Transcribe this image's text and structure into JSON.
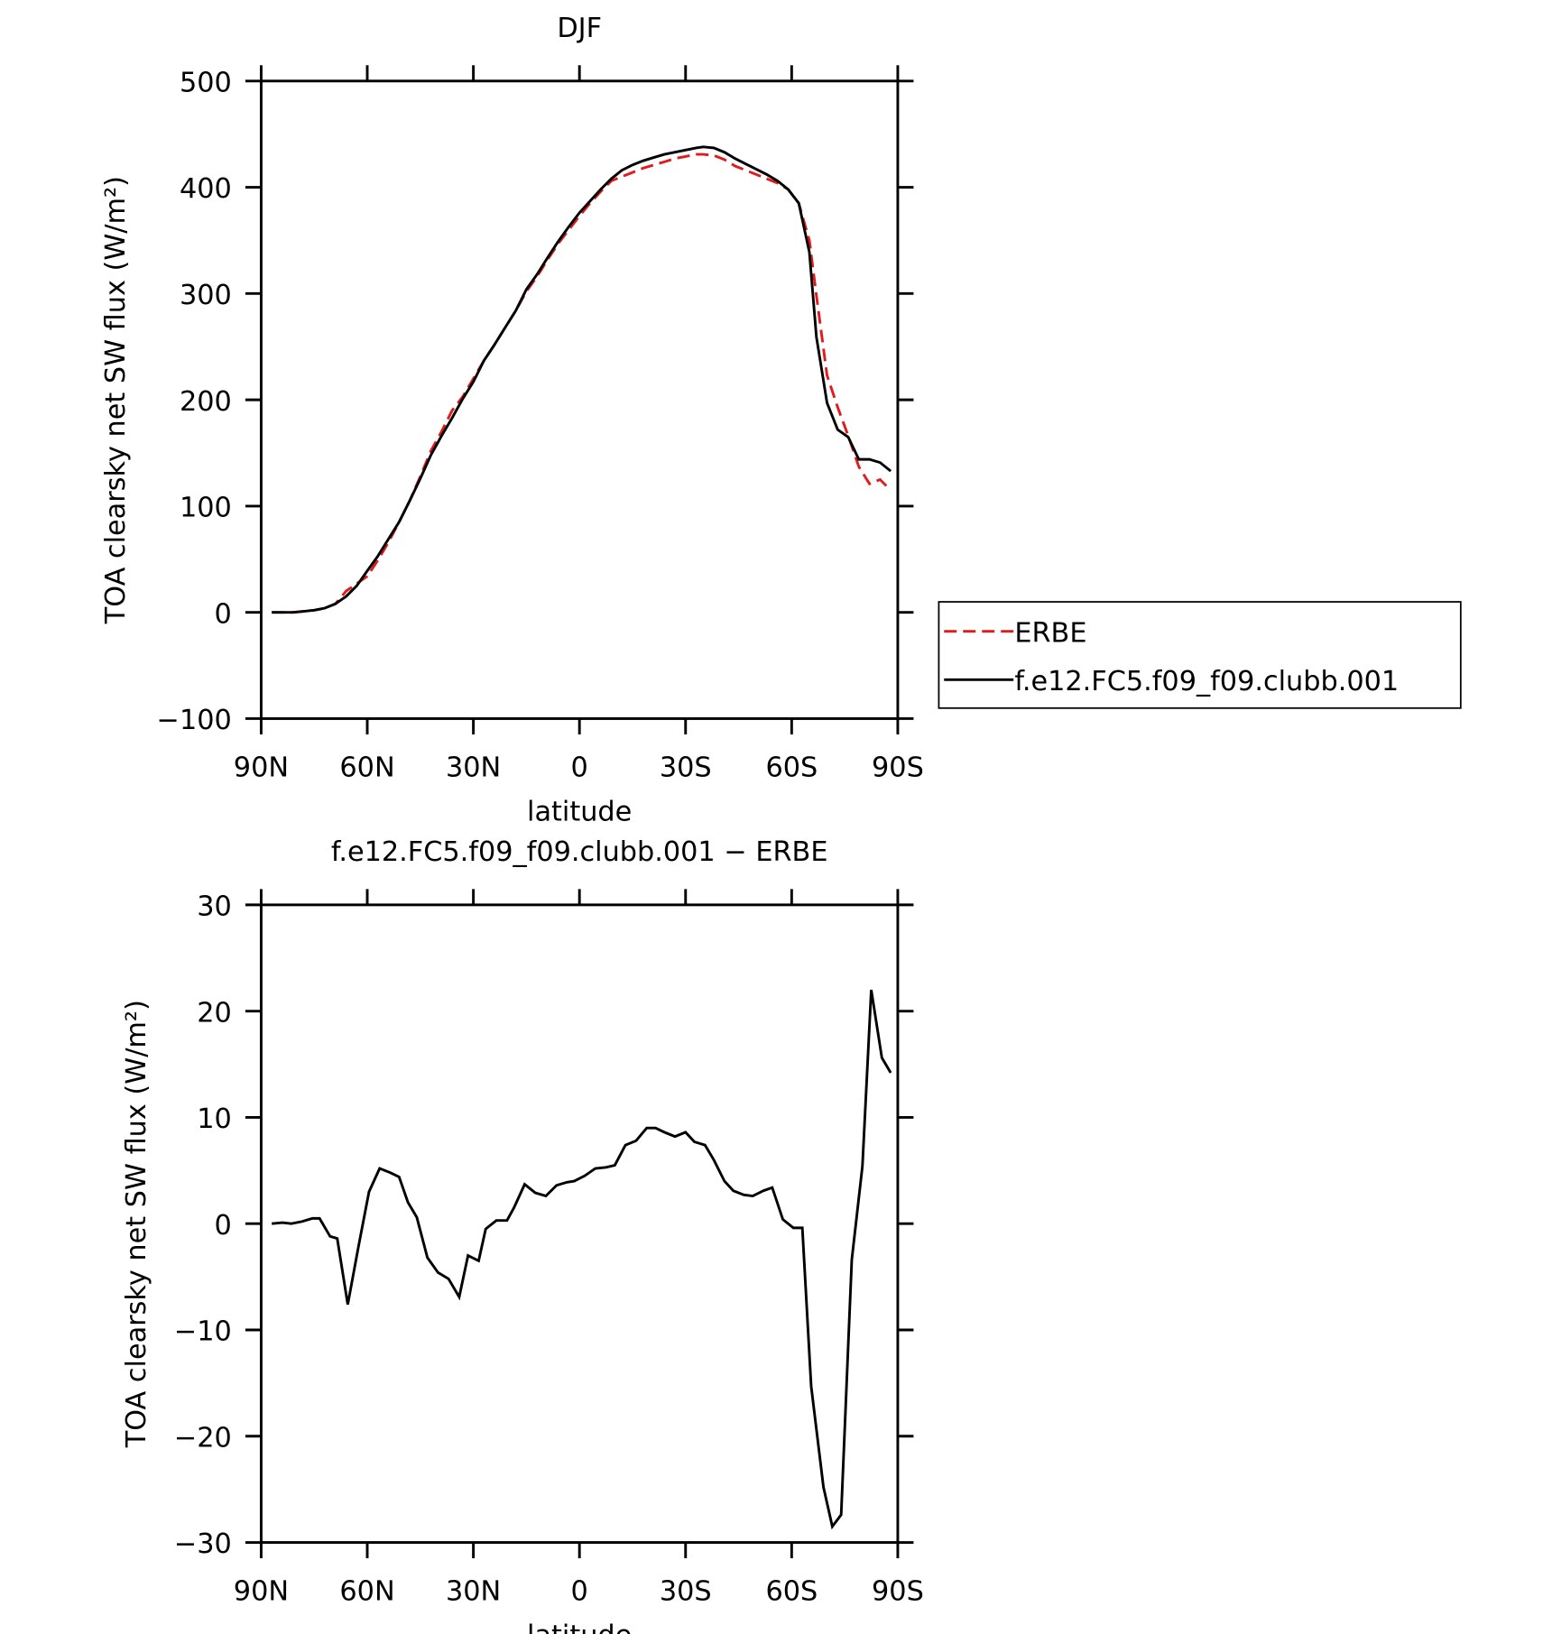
{
  "chart_data": [
    {
      "type": "line",
      "title": "DJF",
      "xlabel": "latitude",
      "ylabel": "TOA clearsky net SW flux (W/m²)",
      "xlim": [
        90,
        -90
      ],
      "ylim": [
        -100,
        500
      ],
      "xticks": [
        {
          "value": 90,
          "label": "90N"
        },
        {
          "value": 60,
          "label": "60N"
        },
        {
          "value": 30,
          "label": "30N"
        },
        0,
        {
          "value": -30,
          "label": "30S"
        },
        {
          "value": -60,
          "label": "60S"
        },
        {
          "value": -90,
          "label": "90S"
        }
      ],
      "yticks": [
        {
          "value": -100,
          "label": "−100"
        },
        0,
        100,
        200,
        300,
        400,
        500
      ],
      "legend": "right",
      "x": [
        87,
        84,
        81,
        78,
        75,
        72,
        69,
        66,
        63,
        60,
        57,
        54,
        51,
        48,
        45,
        42,
        39,
        36,
        33,
        30,
        27,
        24,
        21,
        18,
        15,
        12,
        9,
        6,
        3,
        0,
        -3,
        -6,
        -9,
        -12,
        -15,
        -18,
        -21,
        -24,
        -27,
        -30,
        -33,
        -35,
        -38,
        -41,
        -44,
        -47,
        -50,
        -53,
        -56,
        -59,
        -62,
        -65,
        -67,
        -70,
        -73,
        -76,
        -79,
        -82,
        -85,
        -88
      ],
      "series": [
        {
          "name": "ERBE",
          "color": "#e31a1c",
          "linestyle": "dashed",
          "values": [
            0,
            0,
            0,
            1,
            2,
            4,
            8,
            20,
            27,
            34,
            49,
            66,
            85,
            105,
            128,
            152,
            170,
            190,
            203,
            220,
            237,
            252,
            268,
            284,
            302,
            316,
            332,
            347,
            360,
            373,
            385,
            396,
            406,
            410,
            414,
            418,
            421,
            424,
            427,
            429,
            431,
            431,
            430,
            426,
            420,
            416,
            412,
            408,
            404,
            398,
            385,
            350,
            298,
            223,
            193,
            166,
            137,
            121,
            125,
            115
          ]
        },
        {
          "name": "f.e12.FC5.f09_f09.clubb.001",
          "color": "#000000",
          "linestyle": "solid",
          "values": [
            0,
            0,
            0,
            1,
            2,
            4,
            8,
            15,
            25,
            39,
            53,
            69,
            85,
            105,
            126,
            148,
            166,
            183,
            201,
            217,
            237,
            252,
            268,
            284,
            304,
            318,
            334,
            349,
            363,
            376,
            387,
            398,
            408,
            416,
            421,
            425,
            428,
            431,
            433,
            435,
            437,
            438,
            437,
            433,
            427,
            422,
            417,
            412,
            406,
            398,
            385,
            339,
            259,
            197,
            172,
            165,
            144,
            144,
            141,
            133
          ]
        }
      ]
    },
    {
      "type": "line",
      "title": "f.e12.FC5.f09_f09.clubb.001 − ERBE",
      "xlabel": "latitude",
      "ylabel": "TOA clearsky net SW flux (W/m²)",
      "xlim": [
        90,
        -90
      ],
      "ylim": [
        -30,
        30
      ],
      "xticks": [
        {
          "value": 90,
          "label": "90N"
        },
        {
          "value": 60,
          "label": "60N"
        },
        {
          "value": 30,
          "label": "30N"
        },
        0,
        {
          "value": -30,
          "label": "30S"
        },
        {
          "value": -60,
          "label": "60S"
        },
        {
          "value": -90,
          "label": "90S"
        }
      ],
      "yticks": [
        {
          "value": -30,
          "label": "−30"
        },
        {
          "value": -20,
          "label": "−20"
        },
        {
          "value": -10,
          "label": "−10"
        },
        0,
        10,
        20,
        30
      ],
      "x": [
        87,
        84,
        81.5,
        78.5,
        75.5,
        73.5,
        70.5,
        68.5,
        65.5,
        62.5,
        59.5,
        56.5,
        53.5,
        51,
        48.5,
        46,
        43,
        40,
        37,
        34,
        31.5,
        28.5,
        26.5,
        23.5,
        20.5,
        18.5,
        15.5,
        12.5,
        9.5,
        6.5,
        3.5,
        1.5,
        -1.5,
        -4.5,
        -7.5,
        -10,
        -13,
        -16,
        -19,
        -21.5,
        -24,
        -27,
        -30,
        -32.5,
        -35.5,
        -38,
        -41,
        -43.5,
        -46.5,
        -49,
        -52,
        -54.5,
        -57.5,
        -60.5,
        -63,
        -65.5,
        -69,
        -71.5,
        -74,
        -77,
        -80,
        -82.5,
        -85.5,
        -88
      ],
      "series": [
        {
          "color": "#000000",
          "linestyle": "solid",
          "values": [
            0,
            0.1,
            0,
            0.2,
            0.5,
            0.5,
            -1.2,
            -1.4,
            -7.6,
            -2.2,
            3,
            5.2,
            4.8,
            4.4,
            2,
            0.6,
            -3.2,
            -4.6,
            -5.2,
            -6.9,
            -3,
            -3.5,
            -0.5,
            0.3,
            0.3,
            1.5,
            3.7,
            2.9,
            2.6,
            3.6,
            3.9,
            4,
            4.5,
            5.2,
            5.3,
            5.5,
            7.4,
            7.8,
            9,
            9,
            8.6,
            8.2,
            8.6,
            7.7,
            7.4,
            6,
            4,
            3.1,
            2.7,
            2.6,
            3.1,
            3.4,
            0.4,
            -0.4,
            -0.4,
            -15.3,
            -24.8,
            -28.5,
            -27.4,
            -3.4,
            5.4,
            22,
            15.6,
            14.2
          ]
        }
      ]
    }
  ]
}
